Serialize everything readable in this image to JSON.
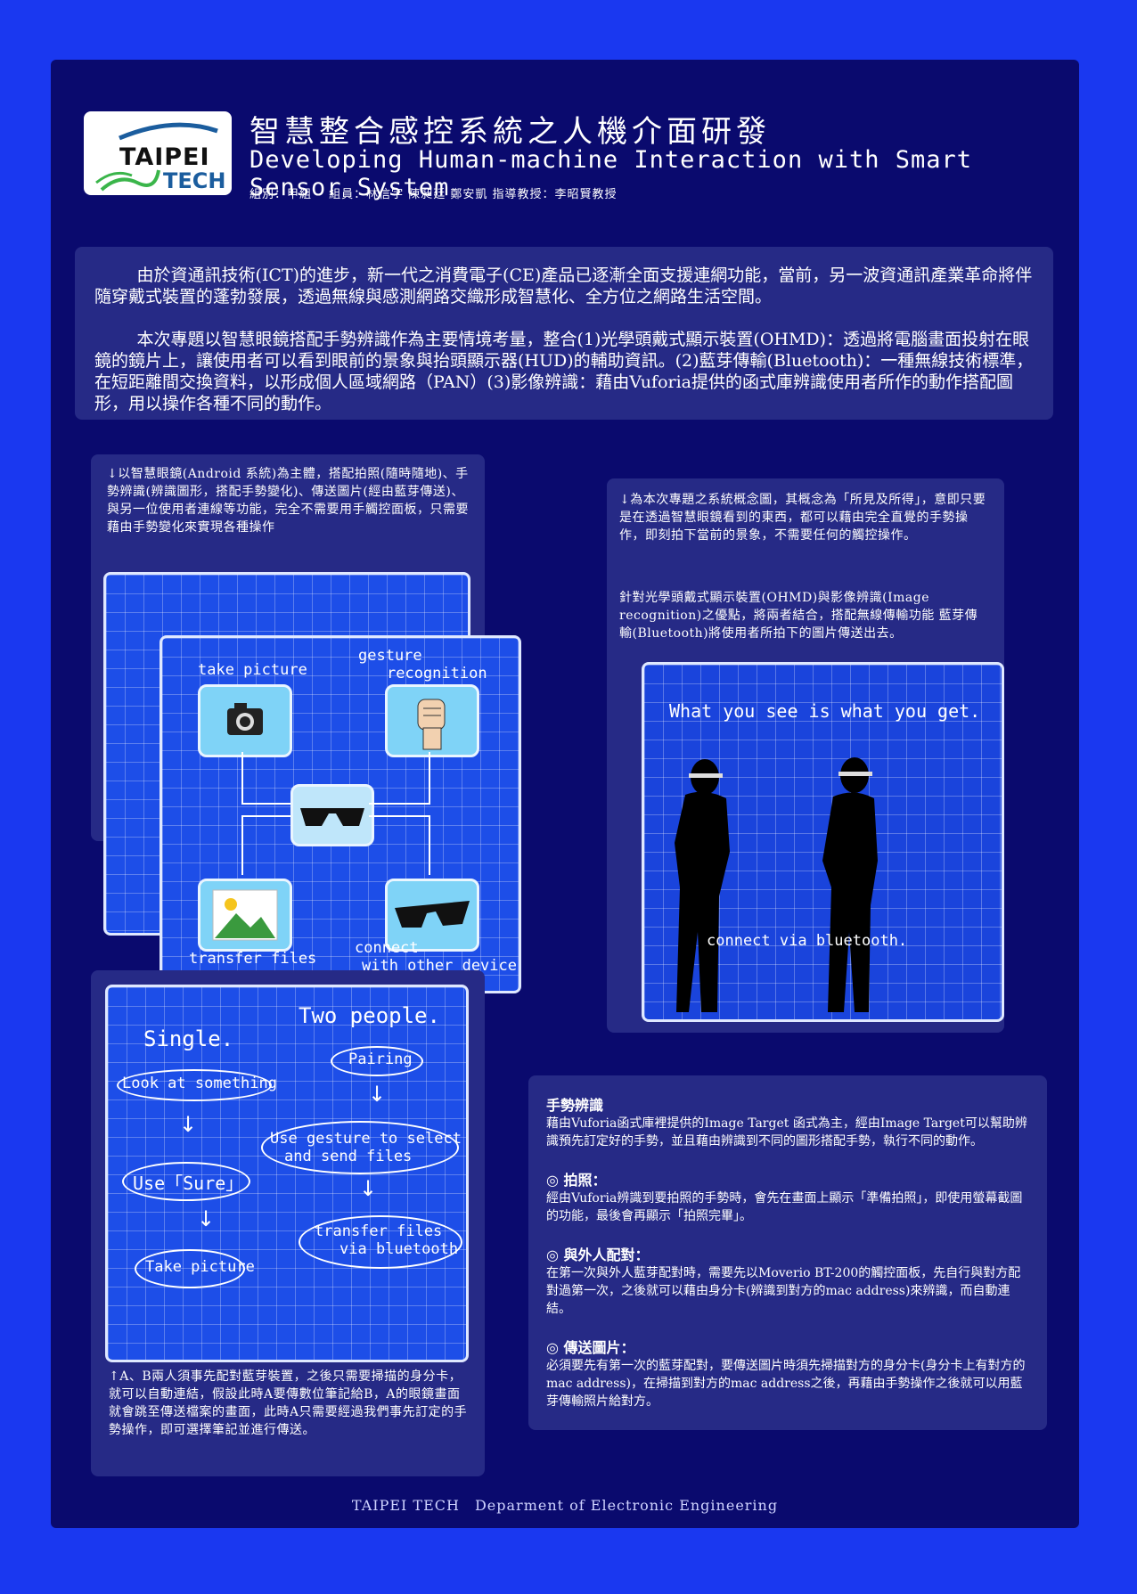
{
  "header": {
    "logo_word1": "TAIPEI",
    "logo_word2": "TECH",
    "title_zh": "智慧整合感控系統之人機介面研發",
    "title_en": "Developing Human-machine Interaction with Smart Sensor System",
    "members": "組別：甲組　 組員：林信宇 陳昶廷 鄭安凱 指導教授：李昭賢教授"
  },
  "intro": {
    "p1": "由於資通訊技術(ICT)的進步，新一代之消費電子(CE)產品已逐漸全面支援連網功能，當前，另一波資通訊產業革命將伴隨穿戴式裝置的蓬勃發展，透過無線與感測網路交織形成智慧化、全方位之網路生活空間。",
    "p2": "本次專題以智慧眼鏡搭配手勢辨識作為主要情境考量，整合(1)光學頭戴式顯示裝置(OHMD)：透過將電腦畫面投射在眼鏡的鏡片上，讓使用者可以看到眼前的景象與抬頭顯示器(HUD)的輔助資訊。(2)藍芽傳輸(Bluetooth)：一種無線技術標準，在短距離間交換資料，以形成個人區域網路（PAN）(3)影像辨識：藉由Vuforia提供的函式庫辨識使用者所作的動作搭配圖形，用以操作各種不同的動作。"
  },
  "panel_left_top": {
    "caption": "↓以智慧眼鏡(Android 系統)為主體，搭配拍照(隨時隨地)、手勢辨識(辨識圖形，搭配手勢變化)、傳送圖片(經由藍芽傳送)、與另一位使用者連線等功能，完全不需要用手觸控面板，只需要藉由手勢變化來實現各種操作",
    "diagram": {
      "take_picture": "take picture",
      "gesture_line1": "gesture",
      "gesture_line2": "recognition",
      "transfer_files": "transfer files",
      "connect_line1": "connect",
      "connect_line2": "with other device"
    }
  },
  "panel_left_bottom": {
    "flow": {
      "single": "Single.",
      "two_people": "Two people.",
      "look": "Look at something",
      "use_sure": "Use「Sure」",
      "take_picture": "Take picture",
      "pairing": "Pairing",
      "gesture_line1": "Use gesture to select",
      "gesture_line2": "and send files",
      "transfer_line1": "transfer files",
      "transfer_line2": "via bluetooth",
      "arrow": "↓"
    },
    "caption": "↑A、B兩人須事先配對藍芽裝置，之後只需要掃描的身分卡，就可以自動連結，假設此時A要傳數位筆記給B，A的眼鏡畫面就會跳至傳送檔案的畫面，此時A只需要經過我們事先訂定的手勢操作，即可選擇筆記並進行傳送。"
  },
  "panel_right_top": {
    "caption1": "↓為本次專題之系統概念圖，其概念為「所見及所得」，意即只要是在透過智慧眼鏡看到的東西，都可以藉由完全直覺的手勢操作，即刻拍下當前的景象，不需要任何的觸控操作。",
    "caption2": "針對光學頭戴式顯示裝置(OHMD)與影像辨識(Image recognition)之優點，將兩者結合，搭配無線傳輸功能 藍芽傳輸(Bluetooth)將使用者所拍下的圖片傳送出去。",
    "concept": {
      "headline": "What you see is what you get.",
      "connect": "connect via bluetooth."
    }
  },
  "panel_right_bottom": {
    "features": [
      {
        "title": "手勢辨識",
        "text": "藉由Vuforia函式庫裡提供的Image Target 函式為主，經由Image Target可以幫助辨識預先訂定好的手勢，並且藉由辨識到不同的圖形搭配手勢，執行不同的動作。"
      },
      {
        "title": "◎ 拍照：",
        "text": "經由Vuforia辨識到要拍照的手勢時，會先在畫面上顯示「準備拍照」，即使用螢幕截圖的功能，最後會再顯示「拍照完畢」。"
      },
      {
        "title": "◎ 與外人配對：",
        "text": "在第一次與外人藍芽配對時，需要先以Moverio BT-200的觸控面板，先自行與對方配對過第一次，之後就可以藉由身分卡(辨識到對方的mac address)來辨識，而自動連結。"
      },
      {
        "title": "◎ 傳送圖片：",
        "text": "必須要先有第一次的藍芽配對，要傳送圖片時須先掃描對方的身分卡(身分卡上有對方的mac address)，在掃描到對方的mac address之後，再藉由手勢操作之後就可以用藍芽傳輸照片給對方。"
      }
    ]
  },
  "footer": "TAIPEI TECH　Deparment of Electronic Engineering",
  "colors": {
    "background": "#1a38f0",
    "poster": "#0a0a6e",
    "panel": "#262a86",
    "grid": "#1d4ee8"
  }
}
